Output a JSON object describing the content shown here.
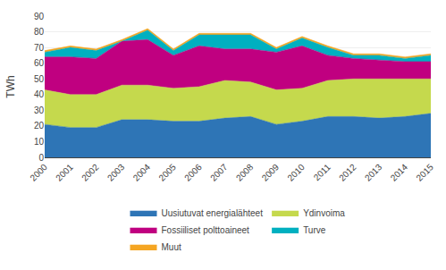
{
  "chart_data": {
    "type": "area",
    "stacked": true,
    "ylabel": "TWh",
    "x": [
      2000,
      2001,
      2002,
      2003,
      2004,
      2005,
      2006,
      2007,
      2008,
      2009,
      2010,
      2011,
      2012,
      2013,
      2014,
      2015
    ],
    "xlim": [
      2000,
      2015
    ],
    "xticks": [
      2000,
      2001,
      2002,
      2003,
      2004,
      2005,
      2006,
      2007,
      2008,
      2009,
      2010,
      2011,
      2012,
      2013,
      2014,
      2015
    ],
    "ylim": [
      0,
      90
    ],
    "yticks": [
      0,
      10,
      20,
      30,
      40,
      50,
      60,
      70,
      80,
      90
    ],
    "grid": true,
    "legend": "bottom",
    "series": [
      {
        "name": "Uusiutuvat energialähteet",
        "color": "#2e75b6",
        "values": [
          21,
          19,
          19,
          24,
          24,
          23,
          23,
          25,
          26,
          21,
          23,
          26,
          26,
          25,
          26,
          28
        ]
      },
      {
        "name": "Ydinvoima",
        "color": "#c5d94d",
        "values": [
          22,
          21,
          21,
          22,
          22,
          21,
          22,
          24,
          22,
          22,
          21,
          23,
          24,
          25,
          24,
          22
        ]
      },
      {
        "name": "Fossiiliset polttoaineet",
        "color": "#c00080",
        "values": [
          21,
          24,
          23,
          28,
          29,
          21,
          26,
          20,
          21,
          24,
          27,
          16,
          13,
          12,
          11,
          11
        ]
      },
      {
        "name": "Turve",
        "color": "#00b0c0",
        "values": [
          3,
          6,
          5,
          0,
          6,
          3,
          7,
          9,
          9,
          2,
          5,
          5,
          2,
          3,
          2,
          4
        ]
      },
      {
        "name": "Muut",
        "color": "#f5a623",
        "values": [
          1,
          1,
          1,
          1,
          1,
          1,
          1,
          1,
          1,
          1,
          1,
          1,
          1,
          1,
          1,
          1
        ]
      }
    ]
  }
}
